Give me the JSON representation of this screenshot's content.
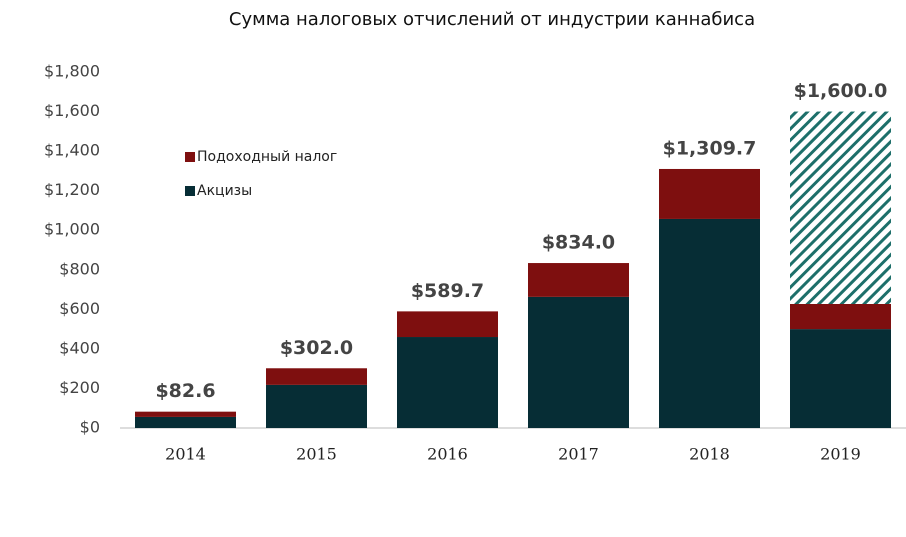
{
  "chart_data": {
    "type": "stacked_bar",
    "title": "Сумма налоговых отчислений от индустрии каннабиса",
    "categories": [
      "2014",
      "2015",
      "2016",
      "2017",
      "2018",
      "2019"
    ],
    "series": [
      {
        "name": "Акцизы",
        "color": "#062d35",
        "values": [
          56,
          218,
          460,
          663,
          1057,
          500
        ]
      },
      {
        "name": "Подоходный налог",
        "color": "#7e0f0f",
        "values": [
          26.6,
          84,
          129.7,
          171,
          252.7,
          127
        ]
      },
      {
        "color": "#1d6f6a",
        "hatch": true,
        "values": [
          null,
          null,
          null,
          null,
          null,
          973
        ]
      }
    ],
    "totals": {
      "values": [
        82.6,
        302.0,
        589.7,
        834.0,
        1309.7,
        1600.0
      ],
      "value_labels": [
        "$82.6",
        "$302.0",
        "$589.7",
        "$834.0",
        "$1,309.7",
        "$1,600.0"
      ]
    },
    "ylim": [
      0,
      1800
    ],
    "yticks": [
      {
        "value": 0,
        "label": "$0"
      },
      {
        "value": 200,
        "label": "$200"
      },
      {
        "value": 400,
        "label": "$400"
      },
      {
        "value": 600,
        "label": "$600"
      },
      {
        "value": 800,
        "label": "$800"
      },
      {
        "value": 1000,
        "label": "$1,000"
      },
      {
        "value": 1200,
        "label": "$1,200"
      },
      {
        "value": 1400,
        "label": "$1,400"
      },
      {
        "value": 1600,
        "label": "$1,600"
      },
      {
        "value": 1800,
        "label": "$1,800"
      }
    ],
    "grid": false,
    "legend": "upper left"
  }
}
